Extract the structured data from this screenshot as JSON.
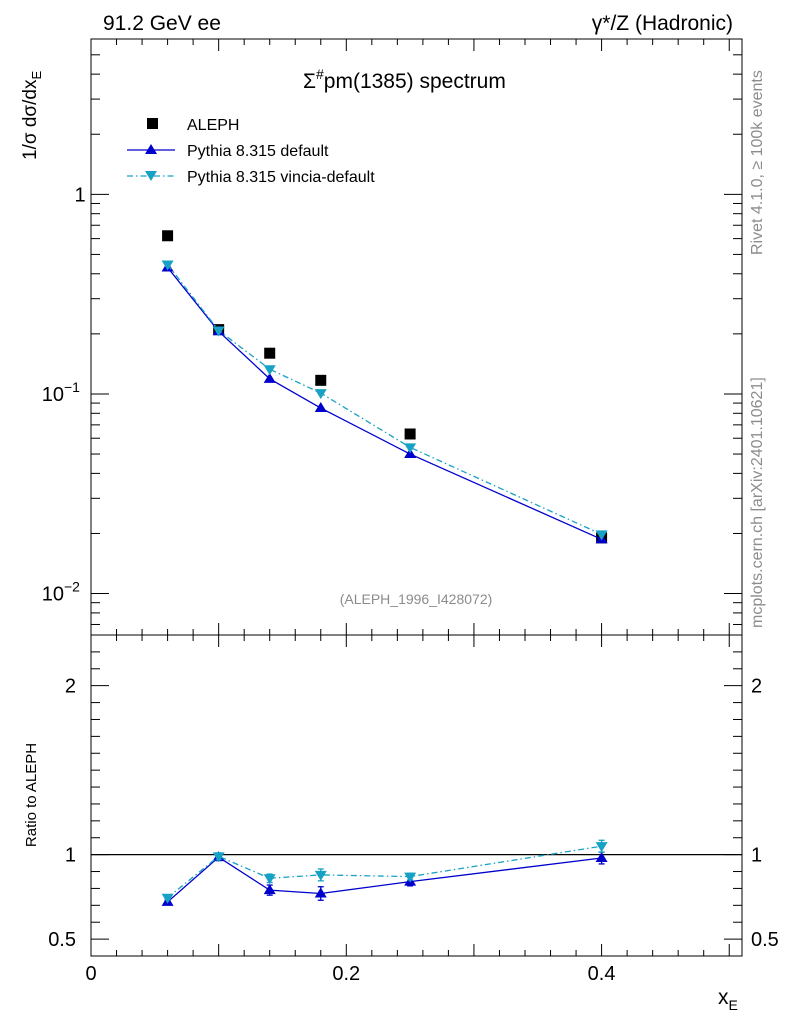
{
  "header": {
    "left": "91.2 GeV ee",
    "right": "γ*/Z (Hadronic)"
  },
  "side": {
    "rivet": "Rivet 4.1.0, ≥ 100k events",
    "mcplots": "mcplots.cern.ch [arXiv:2401.10621]"
  },
  "chart_data": {
    "type": "line",
    "title": "Σ#pm(1385) spectrum",
    "title_base": "Σ",
    "title_sup": "#",
    "title_rest": "pm(1385) spectrum",
    "ylabel_main": "1/σ  dσ/dx",
    "ylabel_main_sub": "E",
    "ylabel_ratio": "Ratio to ALEPH",
    "xlabel": "x",
    "xlabel_sub": "E",
    "analysis_tag": "(ALEPH_1996_I428072)",
    "xlim": [
      0,
      0.51
    ],
    "ylim_main": [
      0.0062,
      6.0
    ],
    "ylim_ratio": [
      0.4,
      2.3
    ],
    "x_ticks": [
      {
        "v": 0,
        "label": "0"
      },
      {
        "v": 0.2,
        "label": "0.2"
      },
      {
        "v": 0.4,
        "label": "0.4"
      }
    ],
    "y_ticks_main": [
      {
        "v": 1,
        "label": "1",
        "exp": ""
      },
      {
        "v": 0.1,
        "label": "10",
        "exp": "−1"
      },
      {
        "v": 0.01,
        "label": "10",
        "exp": "−2"
      }
    ],
    "y_ticks_ratio": [
      {
        "v": 2,
        "label": "2"
      },
      {
        "v": 1,
        "label": "1"
      },
      {
        "v": 0.5,
        "label": "0.5"
      }
    ],
    "x": [
      0.06,
      0.1,
      0.14,
      0.18,
      0.25,
      0.4
    ],
    "series": [
      {
        "name": "ALEPH",
        "style": "data",
        "color": "#000000",
        "values": [
          0.62,
          0.21,
          0.16,
          0.117,
          0.063,
          0.019
        ]
      },
      {
        "name": "Pythia 8.315 default",
        "style": "solid",
        "color": "#0000cc",
        "values": [
          0.43,
          0.206,
          0.119,
          0.085,
          0.05,
          0.0187
        ],
        "ratio": [
          0.72,
          0.985,
          0.79,
          0.77,
          0.84,
          0.98
        ],
        "ratio_err": [
          0.01,
          0.02,
          0.03,
          0.04,
          0.025,
          0.035
        ]
      },
      {
        "name": "Pythia 8.315 vincia-default",
        "style": "dashdot",
        "color": "#17a1c4",
        "values": [
          0.445,
          0.208,
          0.133,
          0.101,
          0.054,
          0.0198
        ],
        "ratio": [
          0.745,
          0.99,
          0.86,
          0.88,
          0.87,
          1.05
        ],
        "ratio_err": [
          0.01,
          0.02,
          0.025,
          0.035,
          0.02,
          0.035
        ]
      }
    ]
  }
}
